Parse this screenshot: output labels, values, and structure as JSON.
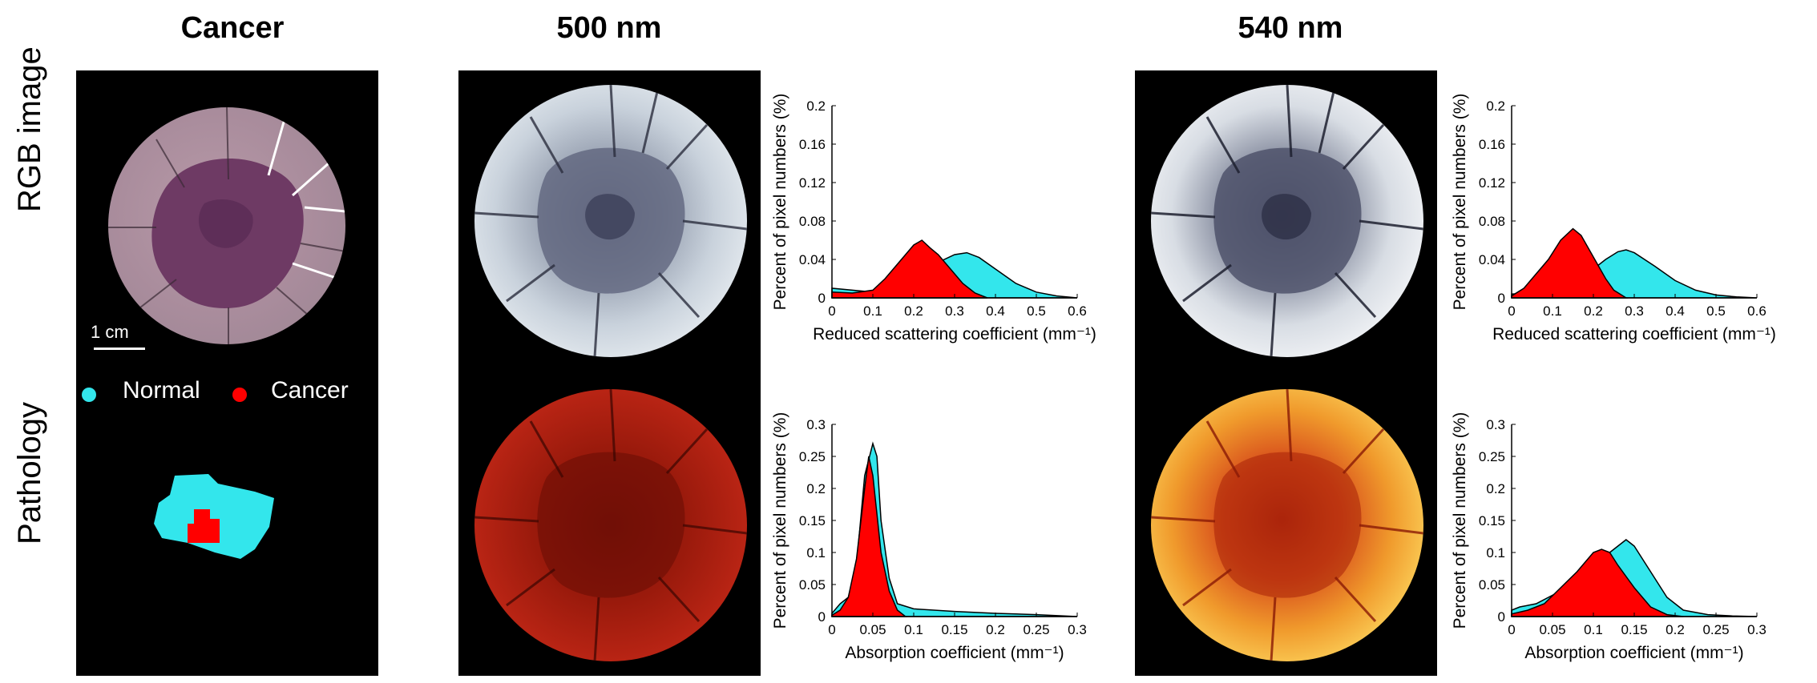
{
  "columns": {
    "cancer": "Cancer",
    "w500": "500 nm",
    "w540": "540 nm"
  },
  "rows": {
    "rgb": "RGB image",
    "pathology": "Pathology"
  },
  "scale_bar": "1 cm",
  "legend": {
    "normal": "Normal",
    "cancer": "Cancer",
    "normal_color": "#33e6ec",
    "cancer_color": "#ff0000"
  },
  "colors": {
    "normal": "#33e6ec",
    "cancer": "#ff0000"
  },
  "chart_data": [
    {
      "id": "scatter500",
      "type": "area",
      "xlabel": "Reduced scattering  coefficient (mm⁻¹)",
      "ylabel": "Percent of pixel numbers (%)",
      "xlim": [
        0,
        0.6
      ],
      "ylim": [
        0,
        0.2
      ],
      "xticks": [
        "0",
        "0.1",
        "0.2",
        "0.3",
        "0.4",
        "0.5",
        "0.6"
      ],
      "yticks": [
        "0",
        "0.04",
        "0.08",
        "0.12",
        "0.16",
        "0.2"
      ],
      "series": [
        {
          "color": "normal",
          "x": [
            0,
            0.05,
            0.1,
            0.15,
            0.2,
            0.25,
            0.3,
            0.33,
            0.36,
            0.4,
            0.45,
            0.5,
            0.55,
            0.6
          ],
          "y": [
            0.01,
            0.008,
            0.006,
            0.01,
            0.02,
            0.035,
            0.045,
            0.047,
            0.042,
            0.03,
            0.015,
            0.006,
            0.002,
            0
          ]
        },
        {
          "color": "cancer",
          "x": [
            0,
            0.05,
            0.1,
            0.13,
            0.16,
            0.18,
            0.2,
            0.22,
            0.24,
            0.26,
            0.28,
            0.3,
            0.32,
            0.35,
            0.38
          ],
          "y": [
            0.006,
            0.005,
            0.008,
            0.02,
            0.035,
            0.045,
            0.055,
            0.06,
            0.052,
            0.045,
            0.035,
            0.025,
            0.015,
            0.005,
            0
          ]
        }
      ]
    },
    {
      "id": "scatter540",
      "type": "area",
      "xlabel": "Reduced scattering  coefficient (mm⁻¹)",
      "ylabel": "Percent of pixel numbers (%)",
      "xlim": [
        0,
        0.6
      ],
      "ylim": [
        0,
        0.2
      ],
      "xticks": [
        "0",
        "0.1",
        "0.2",
        "0.3",
        "0.4",
        "0.5",
        "0.6"
      ],
      "yticks": [
        "0",
        "0.04",
        "0.08",
        "0.12",
        "0.16",
        "0.2"
      ],
      "series": [
        {
          "color": "normal",
          "x": [
            0,
            0.05,
            0.1,
            0.15,
            0.2,
            0.23,
            0.26,
            0.28,
            0.3,
            0.35,
            0.4,
            0.45,
            0.5,
            0.55,
            0.6
          ],
          "y": [
            0.004,
            0.005,
            0.01,
            0.02,
            0.03,
            0.04,
            0.048,
            0.05,
            0.047,
            0.033,
            0.018,
            0.008,
            0.003,
            0.001,
            0
          ]
        },
        {
          "color": "cancer",
          "x": [
            0,
            0.03,
            0.06,
            0.09,
            0.12,
            0.15,
            0.17,
            0.19,
            0.21,
            0.23,
            0.25,
            0.28
          ],
          "y": [
            0.002,
            0.01,
            0.025,
            0.04,
            0.06,
            0.072,
            0.065,
            0.05,
            0.035,
            0.02,
            0.008,
            0
          ]
        }
      ]
    },
    {
      "id": "absorb500",
      "type": "area",
      "xlabel": "Absorption coefficient (mm⁻¹)",
      "ylabel": "Percent of pixel numbers (%)",
      "xlim": [
        0,
        0.3
      ],
      "ylim": [
        0,
        0.3
      ],
      "xticks": [
        "0",
        "0.05",
        "0.1",
        "0.15",
        "0.2",
        "0.25",
        "0.3"
      ],
      "yticks": [
        "0",
        "0.05",
        "0.1",
        "0.15",
        "0.2",
        "0.25",
        "0.3"
      ],
      "series": [
        {
          "color": "normal",
          "x": [
            0,
            0.01,
            0.02,
            0.03,
            0.04,
            0.05,
            0.055,
            0.06,
            0.07,
            0.08,
            0.1,
            0.15,
            0.2,
            0.25,
            0.3
          ],
          "y": [
            0.005,
            0.02,
            0.03,
            0.08,
            0.22,
            0.27,
            0.25,
            0.15,
            0.06,
            0.02,
            0.012,
            0.008,
            0.005,
            0.003,
            0
          ]
        },
        {
          "color": "cancer",
          "x": [
            0,
            0.01,
            0.02,
            0.03,
            0.04,
            0.045,
            0.05,
            0.055,
            0.06,
            0.07,
            0.08,
            0.09
          ],
          "y": [
            0.002,
            0.01,
            0.03,
            0.09,
            0.2,
            0.25,
            0.22,
            0.16,
            0.1,
            0.04,
            0.01,
            0
          ]
        }
      ]
    },
    {
      "id": "absorb540",
      "type": "area",
      "xlabel": "Absorption coefficient (mm⁻¹)",
      "ylabel": "Percent of pixel numbers (%)",
      "xlim": [
        0,
        0.3
      ],
      "ylim": [
        0,
        0.3
      ],
      "xticks": [
        "0",
        "0.05",
        "0.1",
        "0.15",
        "0.2",
        "0.25",
        "0.3"
      ],
      "yticks": [
        "0",
        "0.05",
        "0.1",
        "0.15",
        "0.2",
        "0.25",
        "0.3"
      ],
      "series": [
        {
          "color": "normal",
          "x": [
            0,
            0.01,
            0.03,
            0.06,
            0.09,
            0.11,
            0.13,
            0.14,
            0.15,
            0.17,
            0.19,
            0.21,
            0.24,
            0.27,
            0.3
          ],
          "y": [
            0.01,
            0.015,
            0.02,
            0.04,
            0.07,
            0.09,
            0.11,
            0.12,
            0.11,
            0.07,
            0.03,
            0.01,
            0.003,
            0.001,
            0
          ]
        },
        {
          "color": "cancer",
          "x": [
            0,
            0.02,
            0.04,
            0.06,
            0.08,
            0.1,
            0.11,
            0.12,
            0.13,
            0.15,
            0.17,
            0.19,
            0.21
          ],
          "y": [
            0.004,
            0.01,
            0.02,
            0.045,
            0.07,
            0.1,
            0.105,
            0.1,
            0.08,
            0.045,
            0.015,
            0.003,
            0
          ]
        }
      ]
    }
  ]
}
